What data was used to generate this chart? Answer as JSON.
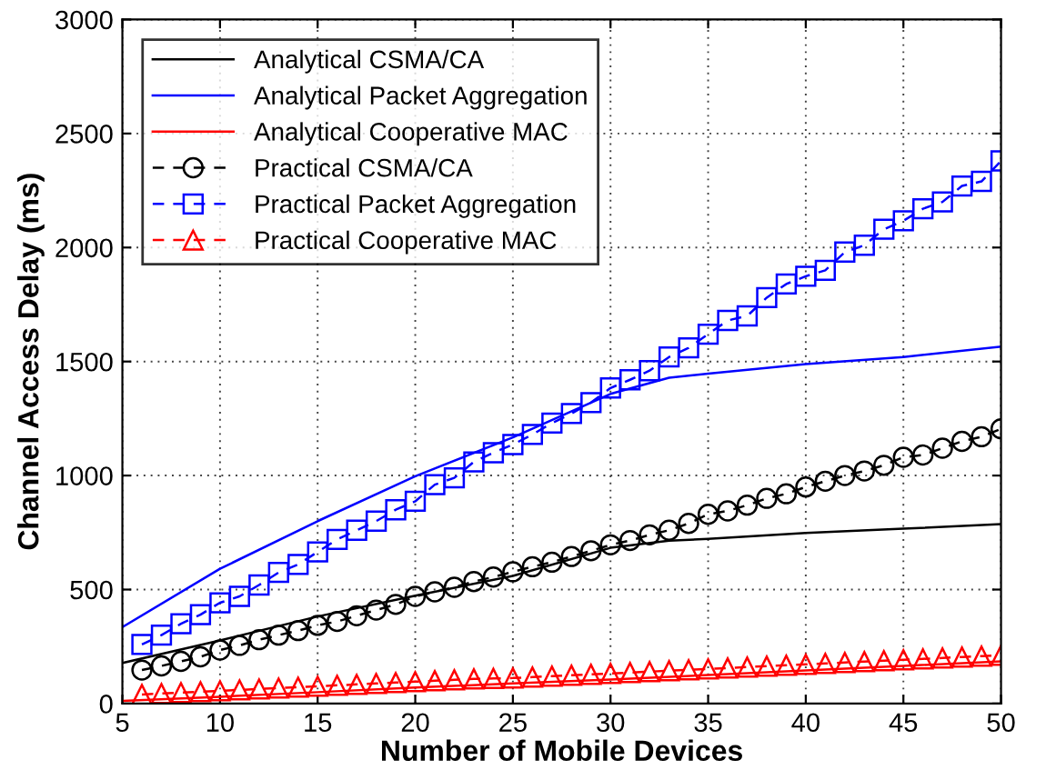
{
  "chart_data": {
    "type": "line",
    "xlabel": "Number of Mobile Devices",
    "ylabel": "Channel Access Delay (ms)",
    "xlim": [
      5,
      50
    ],
    "ylim": [
      0,
      3000
    ],
    "xticks": [
      5,
      10,
      15,
      20,
      25,
      30,
      35,
      40,
      45,
      50
    ],
    "yticks": [
      0,
      500,
      1000,
      1500,
      2000,
      2500,
      3000
    ],
    "grid": true,
    "legend": "top left",
    "series": [
      {
        "name": "Analytical CSMA/CA",
        "color": "#000000",
        "marker": "none",
        "line_style": "solid",
        "x": [
          5,
          10,
          15,
          20,
          25,
          30,
          33,
          35,
          40,
          45,
          50
        ],
        "values": [
          178,
          277,
          382,
          473,
          560,
          683,
          714,
          722,
          748,
          767,
          787
        ]
      },
      {
        "name": "Analytical Packet Aggregation",
        "color": "#0000ff",
        "marker": "none",
        "line_style": "solid",
        "x": [
          5,
          10,
          15,
          20,
          25,
          30,
          33,
          35,
          40,
          45,
          50
        ],
        "values": [
          335,
          591,
          800,
          997,
          1167,
          1358,
          1429,
          1447,
          1489,
          1520,
          1565
        ]
      },
      {
        "name": "Analytical Cooperative MAC",
        "color": "#ff0000",
        "marker": "none",
        "line_style": "solid",
        "x": [
          5,
          10,
          15,
          20,
          25,
          30,
          35,
          40,
          45,
          50
        ],
        "values": [
          12,
          30,
          50,
          70,
          88,
          105,
          125,
          145,
          165,
          185
        ]
      },
      {
        "name": "Practical CSMA/CA",
        "color": "#000000",
        "marker": "circle",
        "line_style": "dashed",
        "x": [
          6,
          7,
          8,
          9,
          10,
          11,
          12,
          13,
          14,
          15,
          16,
          17,
          18,
          19,
          20,
          21,
          22,
          23,
          24,
          25,
          26,
          27,
          28,
          29,
          30,
          31,
          32,
          33,
          34,
          35,
          36,
          37,
          38,
          39,
          40,
          41,
          42,
          43,
          44,
          45,
          46,
          47,
          48,
          49,
          50
        ],
        "values": [
          147,
          165,
          185,
          205,
          235,
          255,
          280,
          300,
          320,
          343,
          360,
          385,
          410,
          435,
          470,
          490,
          510,
          535,
          555,
          578,
          600,
          620,
          645,
          670,
          696,
          715,
          740,
          760,
          790,
          830,
          845,
          870,
          900,
          920,
          950,
          975,
          1000,
          1020,
          1045,
          1080,
          1090,
          1120,
          1150,
          1170,
          1205
        ]
      },
      {
        "name": "Practical Packet Aggregation",
        "color": "#0000ff",
        "marker": "square",
        "line_style": "dashed",
        "x": [
          6,
          7,
          8,
          9,
          10,
          11,
          12,
          13,
          14,
          15,
          16,
          17,
          18,
          19,
          20,
          21,
          22,
          23,
          24,
          25,
          26,
          27,
          28,
          29,
          30,
          31,
          32,
          33,
          34,
          35,
          36,
          37,
          38,
          39,
          40,
          41,
          42,
          43,
          44,
          45,
          46,
          47,
          48,
          49,
          50
        ],
        "values": [
          259,
          300,
          350,
          390,
          442,
          470,
          520,
          575,
          610,
          665,
          720,
          760,
          800,
          850,
          887,
          960,
          990,
          1060,
          1100,
          1136,
          1180,
          1230,
          1272,
          1320,
          1384,
          1420,
          1460,
          1520,
          1560,
          1620,
          1680,
          1700,
          1780,
          1840,
          1874,
          1900,
          1980,
          2010,
          2080,
          2117,
          2170,
          2200,
          2270,
          2290,
          2380
        ]
      },
      {
        "name": "Practical Cooperative MAC",
        "color": "#ff0000",
        "marker": "triangle",
        "line_style": "dashed",
        "x": [
          6,
          7,
          8,
          9,
          10,
          11,
          12,
          13,
          14,
          15,
          16,
          17,
          18,
          19,
          20,
          21,
          22,
          23,
          24,
          25,
          26,
          27,
          28,
          29,
          30,
          31,
          32,
          33,
          34,
          35,
          36,
          37,
          38,
          39,
          40,
          41,
          42,
          43,
          44,
          45,
          46,
          47,
          48,
          49,
          50
        ],
        "values": [
          40,
          44,
          48,
          52,
          56,
          60,
          64,
          68,
          72,
          76,
          80,
          84,
          88,
          92,
          96,
          100,
          104,
          108,
          110,
          112,
          116,
          120,
          124,
          128,
          132,
          136,
          140,
          144,
          148,
          152,
          156,
          160,
          164,
          168,
          172,
          176,
          180,
          184,
          188,
          192,
          196,
          200,
          204,
          208,
          212
        ]
      }
    ]
  }
}
